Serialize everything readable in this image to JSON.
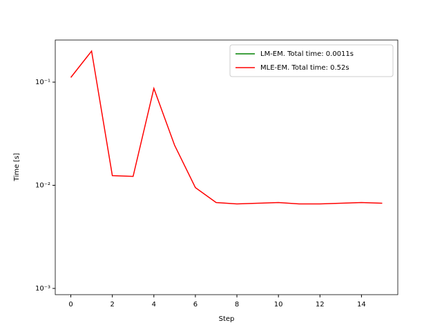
{
  "chart_data": {
    "type": "line",
    "xlabel": "Step",
    "ylabel": "Time [s]",
    "x": [
      0,
      1,
      2,
      3,
      4,
      5,
      6,
      7,
      8,
      9,
      10,
      11,
      12,
      13,
      14,
      15
    ],
    "series": [
      {
        "name": "LM-EM. Total time: 0.0011s",
        "color": "#008000",
        "values": [
          null,
          null,
          null,
          null,
          null,
          null,
          null,
          null,
          null,
          null,
          null,
          null,
          null,
          null,
          null,
          null
        ]
      },
      {
        "name": "MLE-EM. Total time: 0.52s",
        "color": "#ff0000",
        "values": [
          0.111,
          0.2,
          0.0124,
          0.0122,
          0.087,
          0.0244,
          0.0095,
          0.0068,
          0.0066,
          0.0067,
          0.0068,
          0.0066,
          0.0066,
          0.0067,
          0.0068,
          0.0067
        ]
      }
    ],
    "xlim": [
      -0.75,
      15.75
    ],
    "xticks": [
      0,
      2,
      4,
      6,
      8,
      10,
      12,
      14
    ],
    "ylim": [
      0.00087,
      0.256
    ],
    "log_y": true,
    "yticks": [
      {
        "value": 0.001,
        "label": "10⁻³"
      },
      {
        "value": 0.01,
        "label": "10⁻²"
      },
      {
        "value": 0.1,
        "label": "10⁻¹"
      }
    ],
    "legend": "upper right"
  }
}
